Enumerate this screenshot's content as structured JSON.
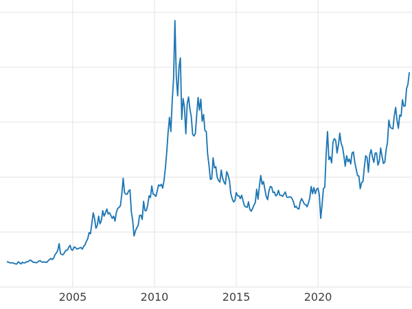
{
  "chart_data": {
    "type": "line",
    "title": "",
    "xlabel": "",
    "ylabel": "",
    "legend": "none",
    "grid": true,
    "x_start": 2001.0,
    "x_step_years": 0.0833333,
    "xlim": [
      2000.55,
      2025.75
    ],
    "ylim": [
      0,
      52
    ],
    "y_gridline_step": 10,
    "x_ticks": [
      {
        "value": 2005,
        "label": "2005"
      },
      {
        "value": 2010,
        "label": "2010"
      },
      {
        "value": 2015,
        "label": "2015"
      },
      {
        "value": 2020,
        "label": "2020"
      }
    ],
    "line_color": "#1f77b4",
    "grid_color": "#e3e3e3",
    "background_color": "#ffffff",
    "tick_label_color": "#3d3d3d",
    "values": [
      4.6,
      4.5,
      4.4,
      4.4,
      4.4,
      4.3,
      4.2,
      4.2,
      4.6,
      4.4,
      4.2,
      4.5,
      4.4,
      4.4,
      4.6,
      4.6,
      4.8,
      4.9,
      4.7,
      4.5,
      4.5,
      4.4,
      4.5,
      4.7,
      4.8,
      4.6,
      4.5,
      4.6,
      4.5,
      4.5,
      4.8,
      5.0,
      5.2,
      5.0,
      5.3,
      5.9,
      6.2,
      6.7,
      7.9,
      6.1,
      5.9,
      5.9,
      6.3,
      6.7,
      6.7,
      7.2,
      7.6,
      6.8,
      6.7,
      7.3,
      7.2,
      6.9,
      7.0,
      7.1,
      7.2,
      6.9,
      7.4,
      7.7,
      8.3,
      8.8,
      9.9,
      9.7,
      11.5,
      13.5,
      12.5,
      10.7,
      11.2,
      12.9,
      11.5,
      12.1,
      13.9,
      12.9,
      13.5,
      14.2,
      13.3,
      13.5,
      13.0,
      12.5,
      12.9,
      12.0,
      13.6,
      14.3,
      14.5,
      14.8,
      16.9,
      19.8,
      17.2,
      16.9,
      16.9,
      17.5,
      17.7,
      13.7,
      12.1,
      9.3,
      10.2,
      10.8,
      11.2,
      13.0,
      13.1,
      12.3,
      15.6,
      13.9,
      13.9,
      14.9,
      16.6,
      16.3,
      18.4,
      16.9,
      16.8,
      16.5,
      17.5,
      18.6,
      18.4,
      18.7,
      18.0,
      19.4,
      21.7,
      24.6,
      28.2,
      30.9,
      28.3,
      33.9,
      37.9,
      48.5,
      38.3,
      34.8,
      40.1,
      41.7,
      30.5,
      34.3,
      32.7,
      27.9,
      33.3,
      34.6,
      32.4,
      31.0,
      27.8,
      27.5,
      27.9,
      31.4,
      34.5,
      32.2,
      34.2,
      30.2,
      31.4,
      28.5,
      28.3,
      24.2,
      22.2,
      19.6,
      19.7,
      23.5,
      21.7,
      21.9,
      20.0,
      19.4,
      19.1,
      21.3,
      19.8,
      19.1,
      18.7,
      21.0,
      20.4,
      19.4,
      17.0,
      16.1,
      15.5,
      15.7,
      17.2,
      16.6,
      16.6,
      16.1,
      16.7,
      15.7,
      14.8,
      14.6,
      14.5,
      15.5,
      14.1,
      13.8,
      14.3,
      14.9,
      15.4,
      17.8,
      16.0,
      18.4,
      20.3,
      18.7,
      19.2,
      17.8,
      16.5,
      15.9,
      17.5,
      18.3,
      18.2,
      17.2,
      17.3,
      16.6,
      16.8,
      17.6,
      16.7,
      16.7,
      16.5,
      16.9,
      17.3,
      16.4,
      16.3,
      16.4,
      16.4,
      16.1,
      15.5,
      14.5,
      14.7,
      14.3,
      14.2,
      15.5,
      16.1,
      15.6,
      15.1,
      15.0,
      14.6,
      15.3,
      16.3,
      18.3,
      17.0,
      18.1,
      17.0,
      17.8,
      18.0,
      16.7,
      12.5,
      15.0,
      17.9,
      18.2,
      24.3,
      28.3,
      23.2,
      23.7,
      22.6,
      26.4,
      27.0,
      26.7,
      24.4,
      25.9,
      28.0,
      26.1,
      25.5,
      23.9,
      22.0,
      23.9,
      22.8,
      23.3,
      22.4,
      24.4,
      24.6,
      22.7,
      21.5,
      20.3,
      20.2,
      17.9,
      19.0,
      19.2,
      21.8,
      23.9,
      23.6,
      20.9,
      24.1,
      25.0,
      23.6,
      22.7,
      24.4,
      24.4,
      22.2,
      22.9,
      25.3,
      23.8,
      22.5,
      22.7,
      25.0,
      26.3,
      30.4,
      29.1,
      28.9,
      28.8,
      31.2,
      32.7,
      30.4,
      28.9,
      31.3,
      31.1,
      34.1,
      32.9,
      33.0,
      36.1,
      36.9,
      39.0
    ]
  }
}
